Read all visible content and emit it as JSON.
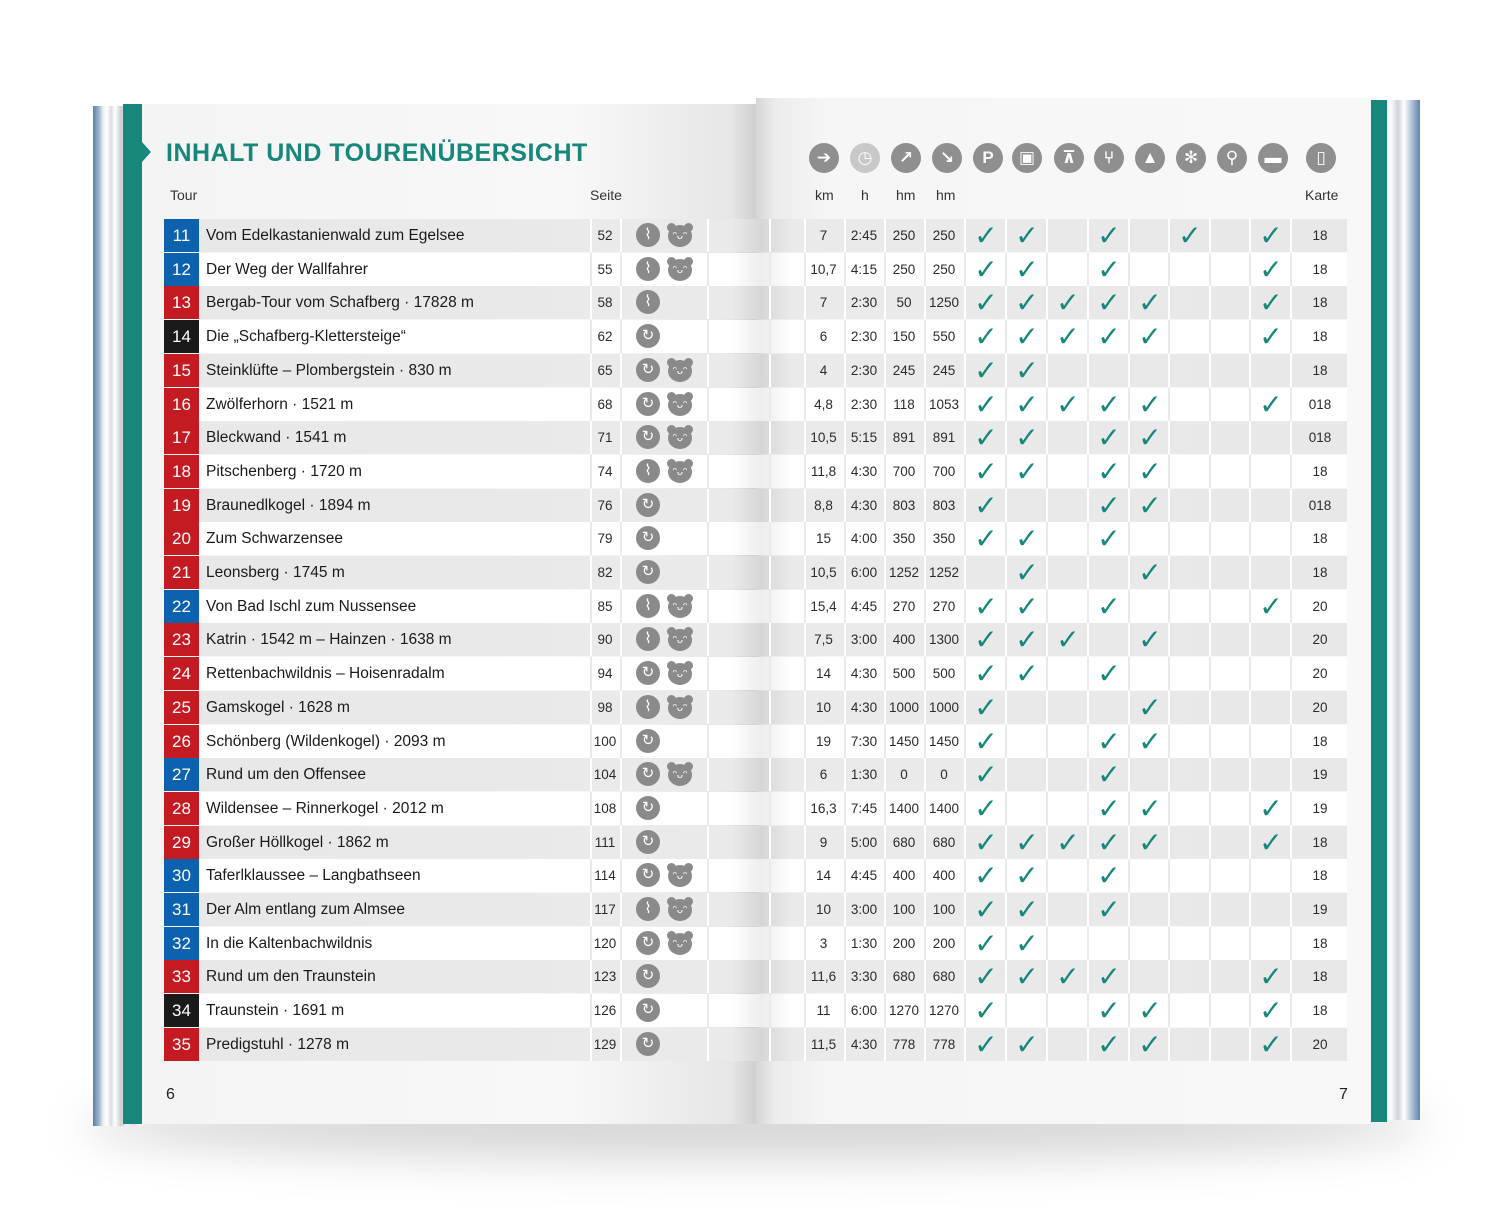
{
  "title": "INHALT UND TOURENÜBERSICHT",
  "headers": {
    "tour": "Tour",
    "seite": "Seite",
    "km": "km",
    "h": "h",
    "hm_up": "hm",
    "hm_down": "hm",
    "karte": "Karte"
  },
  "page_left": "6",
  "page_right": "7",
  "icons": [
    "signpost-icon",
    "clock-icon",
    "ascent-arrow-icon",
    "descent-arrow-icon",
    "parking-icon",
    "bus-icon",
    "cable-car-icon",
    "restaurant-icon",
    "hut-icon",
    "winter-icon",
    "bike-icon",
    "bed-icon",
    "map-icon"
  ],
  "icon_glyphs": [
    "➔",
    "◷",
    "↗",
    "↘",
    "P",
    "▣",
    "⊼",
    "⑂",
    "▲",
    "✻",
    "⚲",
    "▬",
    "▯"
  ],
  "check_glyph": "✓",
  "type_glyphs": {
    "round": "↻",
    "linear": "⌇"
  },
  "kids_glyph": "ᵔᴗᵔ",
  "colors": {
    "accent": "#16877a",
    "blue": "#0c62ae",
    "red": "#c41a22",
    "black": "#1a1a1a"
  },
  "tours": [
    {
      "n": "11",
      "c": "blue",
      "name": "Vom Edelkastanienwald zum Egelsee",
      "seite": "52",
      "type": "linear",
      "kids": true,
      "km": "7",
      "h": "2:45",
      "up": "250",
      "down": "250",
      "checks": [
        1,
        1,
        0,
        1,
        0,
        1,
        0,
        1
      ],
      "karte": "18"
    },
    {
      "n": "12",
      "c": "blue",
      "name": "Der Weg der Wallfahrer",
      "seite": "55",
      "type": "linear",
      "kids": true,
      "km": "10,7",
      "h": "4:15",
      "up": "250",
      "down": "250",
      "checks": [
        1,
        1,
        0,
        1,
        0,
        0,
        0,
        1
      ],
      "karte": "18"
    },
    {
      "n": "13",
      "c": "red",
      "name": "Bergab-Tour vom Schafberg · 17828 m",
      "seite": "58",
      "type": "linear",
      "kids": false,
      "km": "7",
      "h": "2:30",
      "up": "50",
      "down": "1250",
      "checks": [
        1,
        1,
        1,
        1,
        1,
        0,
        0,
        1
      ],
      "karte": "18"
    },
    {
      "n": "14",
      "c": "black",
      "name": "Die „Schafberg-Klettersteige“",
      "seite": "62",
      "type": "round",
      "kids": false,
      "km": "6",
      "h": "2:30",
      "up": "150",
      "down": "550",
      "checks": [
        1,
        1,
        1,
        1,
        1,
        0,
        0,
        1
      ],
      "karte": "18"
    },
    {
      "n": "15",
      "c": "red",
      "name": "Steinklüfte – Plombergstein · 830 m",
      "seite": "65",
      "type": "round",
      "kids": true,
      "km": "4",
      "h": "2:30",
      "up": "245",
      "down": "245",
      "checks": [
        1,
        1,
        0,
        0,
        0,
        0,
        0,
        0
      ],
      "karte": "18"
    },
    {
      "n": "16",
      "c": "red",
      "name": "Zwölferhorn · 1521 m",
      "seite": "68",
      "type": "round",
      "kids": true,
      "km": "4,8",
      "h": "2:30",
      "up": "118",
      "down": "1053",
      "checks": [
        1,
        1,
        1,
        1,
        1,
        0,
        0,
        1
      ],
      "karte": "018"
    },
    {
      "n": "17",
      "c": "red",
      "name": "Bleckwand · 1541 m",
      "seite": "71",
      "type": "round",
      "kids": true,
      "km": "10,5",
      "h": "5:15",
      "up": "891",
      "down": "891",
      "checks": [
        1,
        1,
        0,
        1,
        1,
        0,
        0,
        0
      ],
      "karte": "018"
    },
    {
      "n": "18",
      "c": "red",
      "name": "Pitschenberg · 1720 m",
      "seite": "74",
      "type": "linear",
      "kids": true,
      "km": "11,8",
      "h": "4:30",
      "up": "700",
      "down": "700",
      "checks": [
        1,
        1,
        0,
        1,
        1,
        0,
        0,
        0
      ],
      "karte": "18"
    },
    {
      "n": "19",
      "c": "red",
      "name": "Braunedlkogel · 1894 m",
      "seite": "76",
      "type": "round",
      "kids": false,
      "km": "8,8",
      "h": "4:30",
      "up": "803",
      "down": "803",
      "checks": [
        1,
        0,
        0,
        1,
        1,
        0,
        0,
        0
      ],
      "karte": "018"
    },
    {
      "n": "20",
      "c": "red",
      "name": "Zum Schwarzensee",
      "seite": "79",
      "type": "round",
      "kids": false,
      "km": "15",
      "h": "4:00",
      "up": "350",
      "down": "350",
      "checks": [
        1,
        1,
        0,
        1,
        0,
        0,
        0,
        0
      ],
      "karte": "18"
    },
    {
      "n": "21",
      "c": "red",
      "name": "Leonsberg · 1745 m",
      "seite": "82",
      "type": "round",
      "kids": false,
      "km": "10,5",
      "h": "6:00",
      "up": "1252",
      "down": "1252",
      "checks": [
        0,
        1,
        0,
        0,
        1,
        0,
        0,
        0
      ],
      "karte": "18"
    },
    {
      "n": "22",
      "c": "blue",
      "name": "Von Bad Ischl zum Nussensee",
      "seite": "85",
      "type": "linear",
      "kids": true,
      "km": "15,4",
      "h": "4:45",
      "up": "270",
      "down": "270",
      "checks": [
        1,
        1,
        0,
        1,
        0,
        0,
        0,
        1
      ],
      "karte": "20"
    },
    {
      "n": "23",
      "c": "red",
      "name": "Katrin · 1542 m – Hainzen · 1638 m",
      "seite": "90",
      "type": "linear",
      "kids": true,
      "km": "7,5",
      "h": "3:00",
      "up": "400",
      "down": "1300",
      "checks": [
        1,
        1,
        1,
        0,
        1,
        0,
        0,
        0
      ],
      "karte": "20"
    },
    {
      "n": "24",
      "c": "red",
      "name": "Rettenbachwildnis – Hoisenradalm",
      "seite": "94",
      "type": "round",
      "kids": true,
      "km": "14",
      "h": "4:30",
      "up": "500",
      "down": "500",
      "checks": [
        1,
        1,
        0,
        1,
        0,
        0,
        0,
        0
      ],
      "karte": "20"
    },
    {
      "n": "25",
      "c": "red",
      "name": "Gamskogel · 1628 m",
      "seite": "98",
      "type": "linear",
      "kids": true,
      "km": "10",
      "h": "4:30",
      "up": "1000",
      "down": "1000",
      "checks": [
        1,
        0,
        0,
        0,
        1,
        0,
        0,
        0
      ],
      "karte": "20"
    },
    {
      "n": "26",
      "c": "red",
      "name": "Schönberg (Wildenkogel) · 2093 m",
      "seite": "100",
      "type": "round",
      "kids": false,
      "km": "19",
      "h": "7:30",
      "up": "1450",
      "down": "1450",
      "checks": [
        1,
        0,
        0,
        1,
        1,
        0,
        0,
        0
      ],
      "karte": "18"
    },
    {
      "n": "27",
      "c": "blue",
      "name": "Rund um den Offensee",
      "seite": "104",
      "type": "round",
      "kids": true,
      "km": "6",
      "h": "1:30",
      "up": "0",
      "down": "0",
      "checks": [
        1,
        0,
        0,
        1,
        0,
        0,
        0,
        0
      ],
      "karte": "19"
    },
    {
      "n": "28",
      "c": "red",
      "name": "Wildensee – Rinnerkogel · 2012 m",
      "seite": "108",
      "type": "round",
      "kids": false,
      "km": "16,3",
      "h": "7:45",
      "up": "1400",
      "down": "1400",
      "checks": [
        1,
        0,
        0,
        1,
        1,
        0,
        0,
        1
      ],
      "karte": "19"
    },
    {
      "n": "29",
      "c": "red",
      "name": "Großer Höllkogel · 1862 m",
      "seite": "111",
      "type": "round",
      "kids": false,
      "km": "9",
      "h": "5:00",
      "up": "680",
      "down": "680",
      "checks": [
        1,
        1,
        1,
        1,
        1,
        0,
        0,
        1
      ],
      "karte": "18"
    },
    {
      "n": "30",
      "c": "blue",
      "name": "Taferlklaussee – Langbathseen",
      "seite": "114",
      "type": "round",
      "kids": true,
      "km": "14",
      "h": "4:45",
      "up": "400",
      "down": "400",
      "checks": [
        1,
        1,
        0,
        1,
        0,
        0,
        0,
        0
      ],
      "karte": "18"
    },
    {
      "n": "31",
      "c": "blue",
      "name": "Der Alm entlang zum Almsee",
      "seite": "117",
      "type": "linear",
      "kids": true,
      "km": "10",
      "h": "3:00",
      "up": "100",
      "down": "100",
      "checks": [
        1,
        1,
        0,
        1,
        0,
        0,
        0,
        0
      ],
      "karte": "19"
    },
    {
      "n": "32",
      "c": "blue",
      "name": "In die Kaltenbachwildnis",
      "seite": "120",
      "type": "round",
      "kids": true,
      "km": "3",
      "h": "1:30",
      "up": "200",
      "down": "200",
      "checks": [
        1,
        1,
        0,
        0,
        0,
        0,
        0,
        0
      ],
      "karte": "18"
    },
    {
      "n": "33",
      "c": "red",
      "name": "Rund um den Traunstein",
      "seite": "123",
      "type": "round",
      "kids": false,
      "km": "11,6",
      "h": "3:30",
      "up": "680",
      "down": "680",
      "checks": [
        1,
        1,
        1,
        1,
        0,
        0,
        0,
        1
      ],
      "karte": "18"
    },
    {
      "n": "34",
      "c": "black",
      "name": "Traunstein · 1691 m",
      "seite": "126",
      "type": "round",
      "kids": false,
      "km": "11",
      "h": "6:00",
      "up": "1270",
      "down": "1270",
      "checks": [
        1,
        0,
        0,
        1,
        1,
        0,
        0,
        1
      ],
      "karte": "18"
    },
    {
      "n": "35",
      "c": "red",
      "name": "Predigstuhl · 1278 m",
      "seite": "129",
      "type": "round",
      "kids": false,
      "km": "11,5",
      "h": "4:30",
      "up": "778",
      "down": "778",
      "checks": [
        1,
        1,
        0,
        1,
        1,
        0,
        0,
        1
      ],
      "karte": "20"
    }
  ]
}
